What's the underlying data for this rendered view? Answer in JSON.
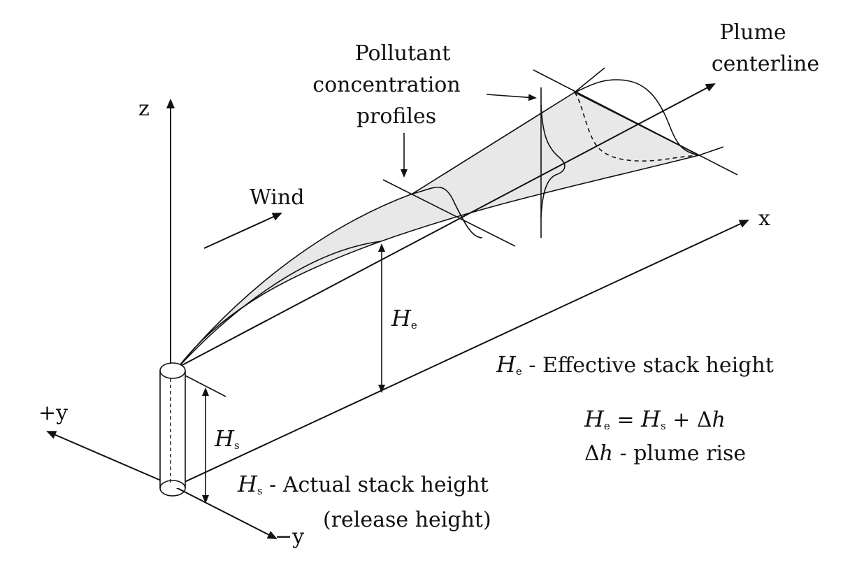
{
  "labels": {
    "pollutant_line1": "Pollutant",
    "pollutant_line2": "concentration",
    "pollutant_line3": "profiles",
    "plume_line1": "Plume",
    "plume_line2": "centerline",
    "axis_z": "z",
    "axis_x": "x",
    "axis_plus_y": "+y",
    "axis_minus_y": "−y",
    "wind": "Wind",
    "he_symbol": "H",
    "he_sub": "e",
    "hs_symbol": "H",
    "hs_sub": "s",
    "def_he_symbol": "H",
    "def_he_sub": "e",
    "def_he_text": " - Effective stack height",
    "eq_h1": "H",
    "eq_s1": "e",
    "eq_mid": " = ",
    "eq_h2": "H",
    "eq_s2": "s",
    "eq_plus": " + Δ",
    "eq_h": "h",
    "rise_delta": "Δ",
    "rise_h": "h",
    "rise_text": " - plume rise",
    "def_hs_symbol": "H",
    "def_hs_sub": "s",
    "def_hs_text": " - Actual stack height",
    "release": "(release height)"
  },
  "colors": {
    "plume_fill": "#e8e8e8",
    "ink": "#111111"
  }
}
